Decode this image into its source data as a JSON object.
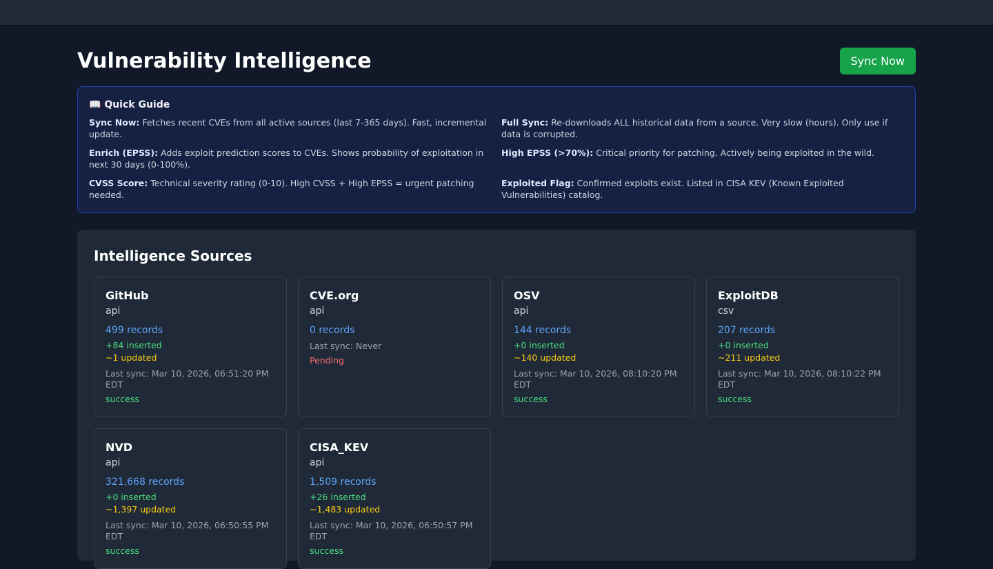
{
  "header": {
    "title": "Vulnerability Intelligence",
    "sync_label": "Sync Now"
  },
  "guide": {
    "icon": "📖",
    "title": "Quick Guide",
    "items": [
      {
        "term": "Sync Now:",
        "text": " Fetches recent CVEs from all active sources (last 7-365 days). Fast, incremental update."
      },
      {
        "term": "Full Sync:",
        "text": " Re-downloads ALL historical data from a source. Very slow (hours). Only use if data is corrupted."
      },
      {
        "term": "Enrich (EPSS):",
        "text": " Adds exploit prediction scores to CVEs. Shows probability of exploitation in next 30 days (0-100%)."
      },
      {
        "term": "High EPSS (>70%):",
        "text": " Critical priority for patching. Actively being exploited in the wild."
      },
      {
        "term": "CVSS Score:",
        "text": " Technical severity rating (0-10). High CVSS + High EPSS = urgent patching needed."
      },
      {
        "term": "Exploited Flag:",
        "text": " Confirmed exploits exist. Listed in CISA KEV (Known Exploited Vulnerabilities) catalog."
      }
    ]
  },
  "sources": {
    "title": "Intelligence Sources",
    "cards": [
      {
        "name": "GitHub",
        "type": "api",
        "records": "499 records",
        "inserted": "+84 inserted",
        "updated": "~1 updated",
        "last_sync": "Last sync: Mar 10, 2026, 06:51:20 PM EDT",
        "status": "success"
      },
      {
        "name": "CVE.org",
        "type": "api",
        "records": "0 records",
        "last_sync": "Last sync: Never",
        "status": "Pending"
      },
      {
        "name": "OSV",
        "type": "api",
        "records": "144 records",
        "inserted": "+0 inserted",
        "updated": "~140 updated",
        "last_sync": "Last sync: Mar 10, 2026, 08:10:20 PM EDT",
        "status": "success"
      },
      {
        "name": "ExploitDB",
        "type": "csv",
        "records": "207 records",
        "inserted": "+0 inserted",
        "updated": "~211 updated",
        "last_sync": "Last sync: Mar 10, 2026, 08:10:22 PM EDT",
        "status": "success"
      },
      {
        "name": "NVD",
        "type": "api",
        "records": "321,668 records",
        "inserted": "+0 inserted",
        "updated": "~1,397 updated",
        "last_sync": "Last sync: Mar 10, 2026, 06:50:55 PM EDT",
        "status": "success"
      },
      {
        "name": "CISA_KEV",
        "type": "api",
        "records": "1,509 records",
        "inserted": "+26 inserted",
        "updated": "~1,483 updated",
        "last_sync": "Last sync: Mar 10, 2026, 06:50:57 PM EDT",
        "status": "success"
      }
    ]
  },
  "colors": {
    "accent": "#16a34a",
    "records": "#60a5fa",
    "inserted": "#4ade80",
    "updated": "#facc15",
    "pending": "#f87171"
  }
}
